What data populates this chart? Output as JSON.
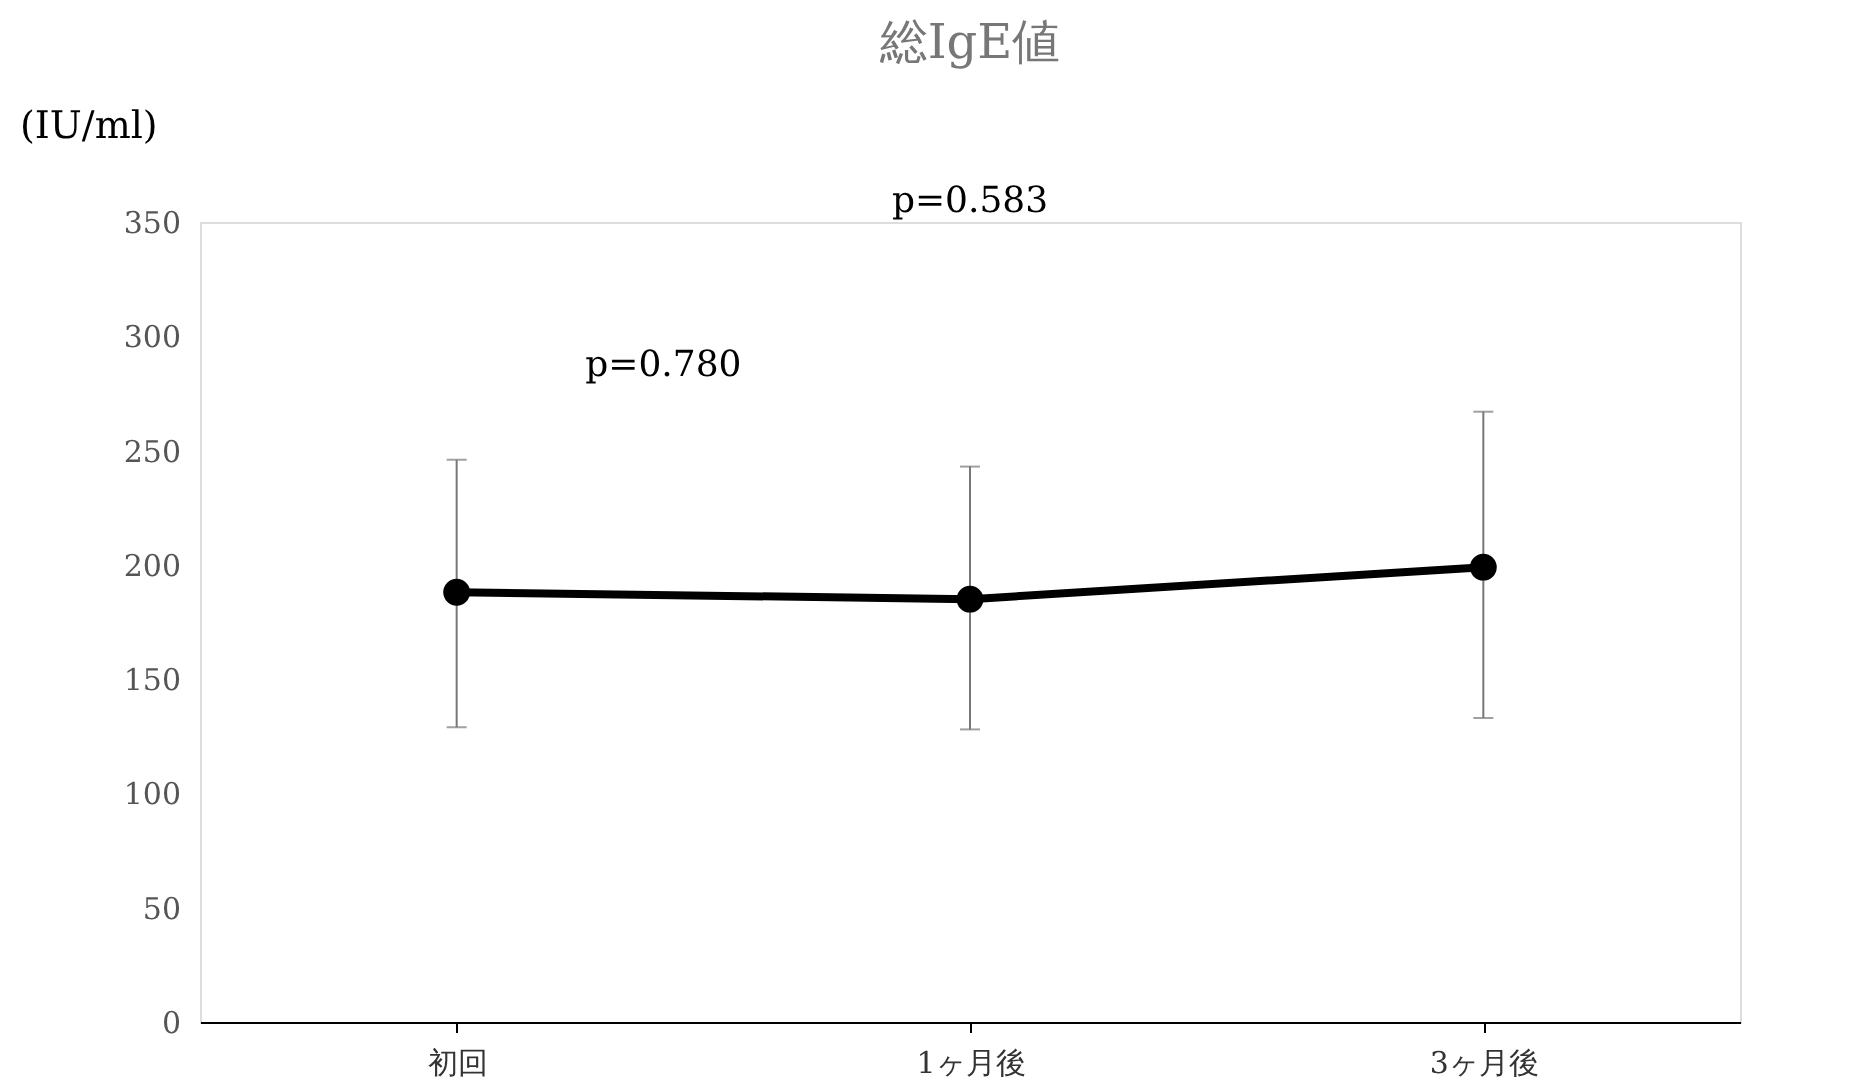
{
  "chart_data": {
    "type": "line",
    "title": "総IgE値",
    "ylabel": "(IU/ml)",
    "categories": [
      "初回",
      "1ヶ月後",
      "3ヶ月後"
    ],
    "series": [
      {
        "color": "#000000",
        "values": [
          188,
          185,
          199
        ],
        "errors": [
          [
            129,
            246
          ],
          [
            128,
            243
          ],
          [
            133,
            267
          ]
        ]
      }
    ],
    "ylim": [
      0,
      350
    ],
    "yticks": [
      0,
      50,
      100,
      150,
      200,
      250,
      300,
      350
    ],
    "grid": false,
    "marker": "circle",
    "annotations": [
      "p=0.583",
      "p=0.780"
    ]
  }
}
